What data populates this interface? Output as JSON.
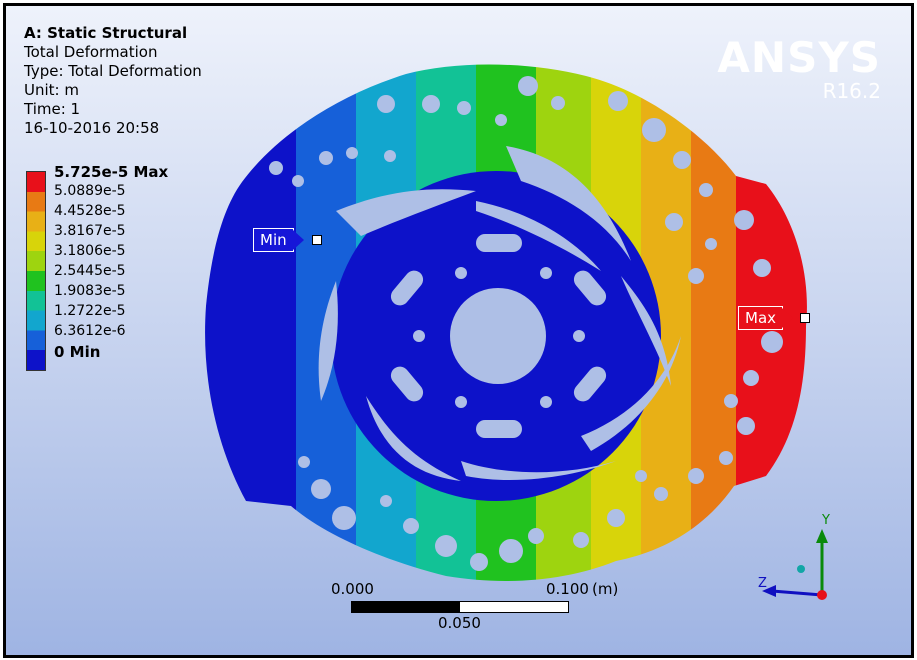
{
  "info": {
    "title": "A: Static Structural",
    "result": "Total Deformation",
    "type": "Type: Total Deformation",
    "unit": "Unit: m",
    "time": "Time: 1",
    "timestamp": "16-10-2016 20:58"
  },
  "legend": {
    "entries": [
      {
        "label": "5.725e-5 Max",
        "color": "#e8101a"
      },
      {
        "label": "5.0889e-5",
        "color": "#e87a14"
      },
      {
        "label": "4.4528e-5",
        "color": "#e8b016"
      },
      {
        "label": "3.8167e-5",
        "color": "#d8d40a"
      },
      {
        "label": "3.1806e-5",
        "color": "#9ed40f"
      },
      {
        "label": "2.5445e-5",
        "color": "#20c21f"
      },
      {
        "label": "1.9083e-5",
        "color": "#12c296"
      },
      {
        "label": "1.2722e-5",
        "color": "#12a6ce"
      },
      {
        "label": "6.3612e-6",
        "color": "#1660d9"
      },
      {
        "label": "0 Min",
        "color": "#0d12c9"
      }
    ]
  },
  "logo": {
    "brand": "ANSYS",
    "version": "R16.2"
  },
  "probes": {
    "min_label": "Min",
    "max_label": "Max"
  },
  "scale_bar": {
    "left_label": "0.000",
    "mid_label": "0.050",
    "right_label": "0.100",
    "unit": "(m)"
  },
  "triad": {
    "y": "Y",
    "z": "Z"
  }
}
